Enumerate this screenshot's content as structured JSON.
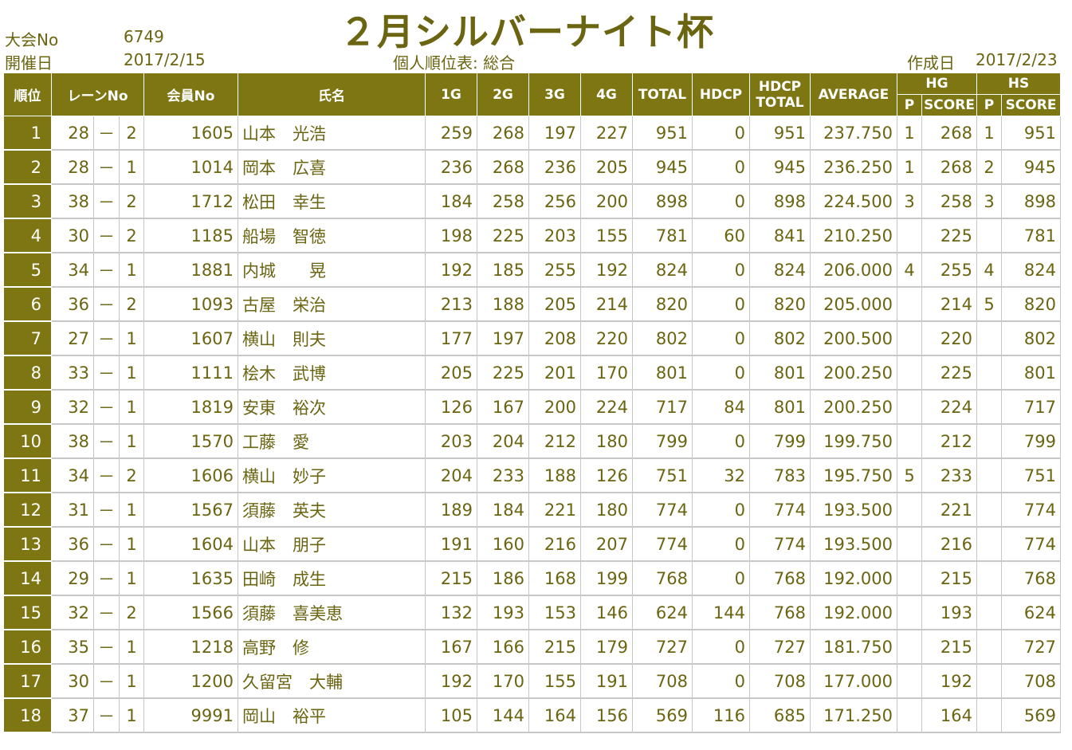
{
  "header": {
    "taikai_label": "大会No",
    "taikai_no": "6749",
    "date_label": "開催日",
    "date": "2017/2/15",
    "title": "２月シルバーナイト杯",
    "subtitle": "個人順位表: 総合",
    "created_label": "作成日",
    "created_date": "2017/2/23"
  },
  "columns": {
    "rank": "順位",
    "lane": "レーンNo",
    "member": "会員No",
    "name": "氏名",
    "g1": "1G",
    "g2": "2G",
    "g3": "3G",
    "g4": "4G",
    "total": "TOTAL",
    "hdcp": "HDCP",
    "hdcp_total_1": "HDCP",
    "hdcp_total_2": "TOTAL",
    "average": "AVERAGE",
    "hg": "HG",
    "hs": "HS",
    "p": "P",
    "score": "SCORE"
  },
  "rows": [
    {
      "rank": "1",
      "lane": "28",
      "dash": "－",
      "lane_sub": "2",
      "member": "1605",
      "name": "山本　光浩",
      "g1": "259",
      "g2": "268",
      "g3": "197",
      "g4": "227",
      "total": "951",
      "hdcp": "0",
      "hdcp_total": "951",
      "average": "237.750",
      "hg_p": "1",
      "hg_score": "268",
      "hs_p": "1",
      "hs_score": "951"
    },
    {
      "rank": "2",
      "lane": "28",
      "dash": "－",
      "lane_sub": "1",
      "member": "1014",
      "name": "岡本　広喜",
      "g1": "236",
      "g2": "268",
      "g3": "236",
      "g4": "205",
      "total": "945",
      "hdcp": "0",
      "hdcp_total": "945",
      "average": "236.250",
      "hg_p": "1",
      "hg_score": "268",
      "hs_p": "2",
      "hs_score": "945"
    },
    {
      "rank": "3",
      "lane": "38",
      "dash": "－",
      "lane_sub": "2",
      "member": "1712",
      "name": "松田　幸生",
      "g1": "184",
      "g2": "258",
      "g3": "256",
      "g4": "200",
      "total": "898",
      "hdcp": "0",
      "hdcp_total": "898",
      "average": "224.500",
      "hg_p": "3",
      "hg_score": "258",
      "hs_p": "3",
      "hs_score": "898"
    },
    {
      "rank": "4",
      "lane": "30",
      "dash": "－",
      "lane_sub": "2",
      "member": "1185",
      "name": "船場　智徳",
      "g1": "198",
      "g2": "225",
      "g3": "203",
      "g4": "155",
      "total": "781",
      "hdcp": "60",
      "hdcp_total": "841",
      "average": "210.250",
      "hg_p": "",
      "hg_score": "225",
      "hs_p": "",
      "hs_score": "781"
    },
    {
      "rank": "5",
      "lane": "34",
      "dash": "－",
      "lane_sub": "1",
      "member": "1881",
      "name": "内城　　晃",
      "g1": "192",
      "g2": "185",
      "g3": "255",
      "g4": "192",
      "total": "824",
      "hdcp": "0",
      "hdcp_total": "824",
      "average": "206.000",
      "hg_p": "4",
      "hg_score": "255",
      "hs_p": "4",
      "hs_score": "824"
    },
    {
      "rank": "6",
      "lane": "36",
      "dash": "－",
      "lane_sub": "2",
      "member": "1093",
      "name": "古屋　栄治",
      "g1": "213",
      "g2": "188",
      "g3": "205",
      "g4": "214",
      "total": "820",
      "hdcp": "0",
      "hdcp_total": "820",
      "average": "205.000",
      "hg_p": "",
      "hg_score": "214",
      "hs_p": "5",
      "hs_score": "820"
    },
    {
      "rank": "7",
      "lane": "27",
      "dash": "－",
      "lane_sub": "1",
      "member": "1607",
      "name": "横山　則夫",
      "g1": "177",
      "g2": "197",
      "g3": "208",
      "g4": "220",
      "total": "802",
      "hdcp": "0",
      "hdcp_total": "802",
      "average": "200.500",
      "hg_p": "",
      "hg_score": "220",
      "hs_p": "",
      "hs_score": "802"
    },
    {
      "rank": "8",
      "lane": "33",
      "dash": "－",
      "lane_sub": "1",
      "member": "1111",
      "name": "桧木　武博",
      "g1": "205",
      "g2": "225",
      "g3": "201",
      "g4": "170",
      "total": "801",
      "hdcp": "0",
      "hdcp_total": "801",
      "average": "200.250",
      "hg_p": "",
      "hg_score": "225",
      "hs_p": "",
      "hs_score": "801"
    },
    {
      "rank": "9",
      "lane": "32",
      "dash": "－",
      "lane_sub": "1",
      "member": "1819",
      "name": "安東　裕次",
      "g1": "126",
      "g2": "167",
      "g3": "200",
      "g4": "224",
      "total": "717",
      "hdcp": "84",
      "hdcp_total": "801",
      "average": "200.250",
      "hg_p": "",
      "hg_score": "224",
      "hs_p": "",
      "hs_score": "717"
    },
    {
      "rank": "10",
      "lane": "38",
      "dash": "－",
      "lane_sub": "1",
      "member": "1570",
      "name": "工藤　愛",
      "g1": "203",
      "g2": "204",
      "g3": "212",
      "g4": "180",
      "total": "799",
      "hdcp": "0",
      "hdcp_total": "799",
      "average": "199.750",
      "hg_p": "",
      "hg_score": "212",
      "hs_p": "",
      "hs_score": "799"
    },
    {
      "rank": "11",
      "lane": "34",
      "dash": "－",
      "lane_sub": "2",
      "member": "1606",
      "name": "横山　妙子",
      "g1": "204",
      "g2": "233",
      "g3": "188",
      "g4": "126",
      "total": "751",
      "hdcp": "32",
      "hdcp_total": "783",
      "average": "195.750",
      "hg_p": "5",
      "hg_score": "233",
      "hs_p": "",
      "hs_score": "751"
    },
    {
      "rank": "12",
      "lane": "31",
      "dash": "－",
      "lane_sub": "1",
      "member": "1567",
      "name": "須藤　英夫",
      "g1": "189",
      "g2": "184",
      "g3": "221",
      "g4": "180",
      "total": "774",
      "hdcp": "0",
      "hdcp_total": "774",
      "average": "193.500",
      "hg_p": "",
      "hg_score": "221",
      "hs_p": "",
      "hs_score": "774"
    },
    {
      "rank": "13",
      "lane": "36",
      "dash": "－",
      "lane_sub": "1",
      "member": "1604",
      "name": "山本　朋子",
      "g1": "191",
      "g2": "160",
      "g3": "216",
      "g4": "207",
      "total": "774",
      "hdcp": "0",
      "hdcp_total": "774",
      "average": "193.500",
      "hg_p": "",
      "hg_score": "216",
      "hs_p": "",
      "hs_score": "774"
    },
    {
      "rank": "14",
      "lane": "29",
      "dash": "－",
      "lane_sub": "1",
      "member": "1635",
      "name": "田崎　成生",
      "g1": "215",
      "g2": "186",
      "g3": "168",
      "g4": "199",
      "total": "768",
      "hdcp": "0",
      "hdcp_total": "768",
      "average": "192.000",
      "hg_p": "",
      "hg_score": "215",
      "hs_p": "",
      "hs_score": "768"
    },
    {
      "rank": "15",
      "lane": "32",
      "dash": "－",
      "lane_sub": "2",
      "member": "1566",
      "name": "須藤　喜美恵",
      "g1": "132",
      "g2": "193",
      "g3": "153",
      "g4": "146",
      "total": "624",
      "hdcp": "144",
      "hdcp_total": "768",
      "average": "192.000",
      "hg_p": "",
      "hg_score": "193",
      "hs_p": "",
      "hs_score": "624"
    },
    {
      "rank": "16",
      "lane": "35",
      "dash": "－",
      "lane_sub": "1",
      "member": "1218",
      "name": "高野　修",
      "g1": "167",
      "g2": "166",
      "g3": "215",
      "g4": "179",
      "total": "727",
      "hdcp": "0",
      "hdcp_total": "727",
      "average": "181.750",
      "hg_p": "",
      "hg_score": "215",
      "hs_p": "",
      "hs_score": "727"
    },
    {
      "rank": "17",
      "lane": "30",
      "dash": "－",
      "lane_sub": "1",
      "member": "1200",
      "name": "久留宮　大輔",
      "g1": "192",
      "g2": "170",
      "g3": "155",
      "g4": "191",
      "total": "708",
      "hdcp": "0",
      "hdcp_total": "708",
      "average": "177.000",
      "hg_p": "",
      "hg_score": "192",
      "hs_p": "",
      "hs_score": "708"
    },
    {
      "rank": "18",
      "lane": "37",
      "dash": "－",
      "lane_sub": "1",
      "member": "9991",
      "name": "岡山　裕平",
      "g1": "105",
      "g2": "144",
      "g3": "164",
      "g4": "156",
      "total": "569",
      "hdcp": "116",
      "hdcp_total": "685",
      "average": "171.250",
      "hg_p": "",
      "hg_score": "164",
      "hs_p": "",
      "hs_score": "569"
    }
  ]
}
